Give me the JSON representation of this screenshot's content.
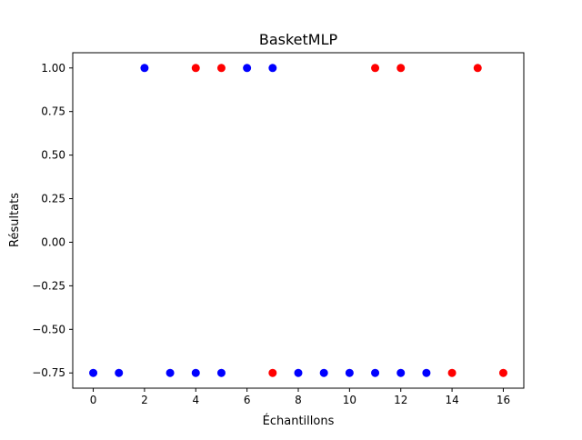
{
  "chart_data": {
    "type": "scatter",
    "title": "BasketMLP",
    "xlabel": "Échantillons",
    "ylabel": "Résultats",
    "xlim": [
      -0.8,
      16.8
    ],
    "ylim": [
      -0.8375,
      1.0875
    ],
    "xticks": [
      "0",
      "2",
      "4",
      "6",
      "8",
      "10",
      "12",
      "14",
      "16"
    ],
    "yticks": [
      "1.00",
      "0.75",
      "0.50",
      "0.25",
      "0.00",
      "−0.25",
      "−0.50",
      "−0.75"
    ],
    "grid": false,
    "colors": {
      "blue": "#0000ff",
      "red": "#ff0000"
    },
    "points": [
      {
        "x": 0,
        "y": -0.75,
        "color": "blue"
      },
      {
        "x": 1,
        "y": -0.75,
        "color": "blue"
      },
      {
        "x": 2,
        "y": 1.0,
        "color": "blue"
      },
      {
        "x": 3,
        "y": -0.75,
        "color": "blue"
      },
      {
        "x": 4,
        "y": 1.0,
        "color": "red"
      },
      {
        "x": 4,
        "y": -0.75,
        "color": "blue"
      },
      {
        "x": 5,
        "y": 1.0,
        "color": "red"
      },
      {
        "x": 5,
        "y": -0.75,
        "color": "blue"
      },
      {
        "x": 6,
        "y": 1.0,
        "color": "blue"
      },
      {
        "x": 7,
        "y": 1.0,
        "color": "blue"
      },
      {
        "x": 7,
        "y": -0.75,
        "color": "red"
      },
      {
        "x": 8,
        "y": -0.75,
        "color": "blue"
      },
      {
        "x": 9,
        "y": -0.75,
        "color": "blue"
      },
      {
        "x": 10,
        "y": -0.75,
        "color": "blue"
      },
      {
        "x": 11,
        "y": 1.0,
        "color": "red"
      },
      {
        "x": 11,
        "y": -0.75,
        "color": "blue"
      },
      {
        "x": 12,
        "y": 1.0,
        "color": "red"
      },
      {
        "x": 12,
        "y": -0.75,
        "color": "blue"
      },
      {
        "x": 13,
        "y": -0.75,
        "color": "blue"
      },
      {
        "x": 14,
        "y": -0.75,
        "color": "red"
      },
      {
        "x": 15,
        "y": 1.0,
        "color": "red"
      },
      {
        "x": 16,
        "y": -0.75,
        "color": "red"
      }
    ]
  }
}
